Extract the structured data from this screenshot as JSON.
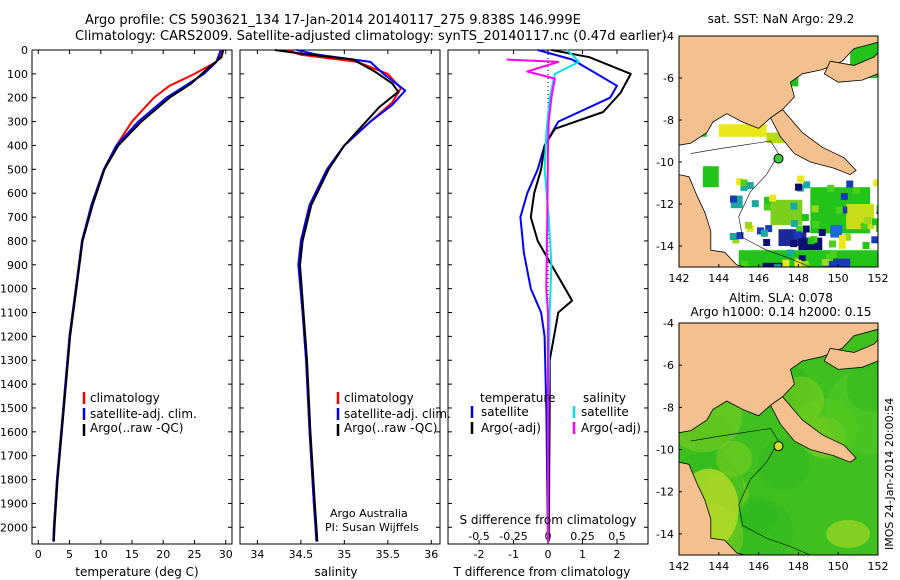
{
  "header": {
    "title_line1": "Argo profile: CS 5903621_134 17-Jan-2014 20140117_275 9.838S 146.999E",
    "title_line2": "Climatology: CARS2009. Satellite-adjusted climatology: synTS_20140117.nc (0.47d earlier)"
  },
  "colors": {
    "climatology": "#ff0000",
    "satellite": "#0000ff",
    "argo": "#000000",
    "sal_satellite": "#00e5ee",
    "sal_argo": "#ff00ff",
    "land": "#f4c08e",
    "sst_green": "#22c41a",
    "sla_green": "#3fc01f"
  },
  "chart_data": [
    {
      "type": "line",
      "name": "temperature-profile",
      "xlabel": "temperature (deg C)",
      "ylabel": "",
      "xlim": [
        -1,
        31
      ],
      "ylim": [
        2070,
        0
      ],
      "xticks": [
        0,
        5,
        10,
        15,
        20,
        25,
        30
      ],
      "yticks": [
        0,
        100,
        200,
        300,
        400,
        500,
        600,
        700,
        800,
        900,
        1000,
        1100,
        1200,
        1300,
        1400,
        1500,
        1600,
        1700,
        1800,
        1900,
        2000
      ],
      "legend": [
        "climatology",
        "satellite-adj. clim.",
        "Argo(..raw -QC)"
      ],
      "series": [
        {
          "name": "climatology",
          "color": "#ff0000",
          "points": [
            [
              29.5,
              0
            ],
            [
              28.5,
              50
            ],
            [
              25,
              100
            ],
            [
              21,
              150
            ],
            [
              18.5,
              200
            ],
            [
              15,
              300
            ],
            [
              12.5,
              400
            ],
            [
              10.5,
              500
            ],
            [
              8.5,
              650
            ],
            [
              7,
              800
            ],
            [
              6,
              1000
            ],
            [
              5,
              1200
            ],
            [
              4,
              1500
            ],
            [
              3,
              1800
            ],
            [
              2.5,
              2000
            ],
            [
              2.4,
              2060
            ]
          ]
        },
        {
          "name": "satellite-adj. clim.",
          "color": "#0000ff",
          "points": [
            [
              29.2,
              0
            ],
            [
              28.5,
              50
            ],
            [
              26.5,
              100
            ],
            [
              23.5,
              150
            ],
            [
              20.5,
              200
            ],
            [
              16,
              300
            ],
            [
              12.5,
              400
            ],
            [
              10.5,
              500
            ],
            [
              8.5,
              650
            ],
            [
              7,
              800
            ],
            [
              6,
              1000
            ],
            [
              5,
              1200
            ],
            [
              4,
              1500
            ],
            [
              3,
              1800
            ],
            [
              2.5,
              2000
            ],
            [
              2.4,
              2060
            ]
          ]
        },
        {
          "name": "Argo(..raw -QC)",
          "color": "#000000",
          "points": [
            [
              29.6,
              0
            ],
            [
              29.3,
              30
            ],
            [
              27,
              80
            ],
            [
              24.5,
              140
            ],
            [
              21,
              200
            ],
            [
              16.5,
              300
            ],
            [
              12.8,
              400
            ],
            [
              10.6,
              500
            ],
            [
              8.7,
              650
            ],
            [
              7.1,
              800
            ],
            [
              6.1,
              1000
            ],
            [
              5.1,
              1200
            ],
            [
              4.1,
              1500
            ],
            [
              3.1,
              1800
            ],
            [
              2.6,
              2000
            ],
            [
              2.5,
              2060
            ]
          ]
        }
      ]
    },
    {
      "type": "line",
      "name": "salinity-profile",
      "xlabel": "salinity",
      "xlim": [
        33.8,
        36.1
      ],
      "ylim": [
        2070,
        0
      ],
      "xticks": [
        34,
        34.5,
        35,
        35.5,
        36
      ],
      "legend": [
        "climatology",
        "satellite-adj. clim.",
        "Argo(..raw -QC)"
      ],
      "annotation": [
        "Argo Australia",
        "PI: Susan Wijffels"
      ],
      "series": [
        {
          "name": "climatology",
          "color": "#ff0000",
          "points": [
            [
              34.35,
              0
            ],
            [
              34.5,
              20
            ],
            [
              35.15,
              50
            ],
            [
              35.5,
              100
            ],
            [
              35.65,
              160
            ],
            [
              35.55,
              220
            ],
            [
              35.3,
              300
            ],
            [
              35.0,
              400
            ],
            [
              34.8,
              500
            ],
            [
              34.6,
              650
            ],
            [
              34.5,
              800
            ],
            [
              34.48,
              900
            ],
            [
              34.52,
              1100
            ],
            [
              34.56,
              1300
            ],
            [
              34.6,
              1600
            ],
            [
              34.65,
              1900
            ],
            [
              34.68,
              2060
            ]
          ]
        },
        {
          "name": "satellite-adj. clim.",
          "color": "#0000ff",
          "points": [
            [
              34.45,
              0
            ],
            [
              34.7,
              20
            ],
            [
              35.3,
              50
            ],
            [
              35.45,
              100
            ],
            [
              35.7,
              170
            ],
            [
              35.55,
              230
            ],
            [
              35.3,
              300
            ],
            [
              35.0,
              400
            ],
            [
              34.8,
              500
            ],
            [
              34.6,
              650
            ],
            [
              34.5,
              800
            ],
            [
              34.47,
              900
            ],
            [
              34.52,
              1100
            ],
            [
              34.56,
              1300
            ],
            [
              34.6,
              1600
            ],
            [
              34.65,
              1900
            ],
            [
              34.68,
              2060
            ]
          ]
        },
        {
          "name": "Argo(..raw -QC)",
          "color": "#000000",
          "points": [
            [
              34.2,
              0
            ],
            [
              34.5,
              15
            ],
            [
              35.1,
              40
            ],
            [
              35.35,
              90
            ],
            [
              35.55,
              140
            ],
            [
              35.62,
              175
            ],
            [
              35.4,
              240
            ],
            [
              35.25,
              300
            ],
            [
              35.0,
              400
            ],
            [
              34.82,
              500
            ],
            [
              34.62,
              650
            ],
            [
              34.52,
              800
            ],
            [
              34.49,
              900
            ],
            [
              34.53,
              1100
            ],
            [
              34.57,
              1300
            ],
            [
              34.61,
              1600
            ],
            [
              34.66,
              1900
            ],
            [
              34.69,
              2060
            ]
          ]
        }
      ]
    },
    {
      "type": "line",
      "name": "difference-profile",
      "xlabel": "T difference from climatology",
      "xlabel_top": "S difference from climatology",
      "xlim": [
        -2.9,
        2.9
      ],
      "ylim": [
        2070,
        0
      ],
      "xticks": [
        -2,
        -1,
        0,
        1,
        2
      ],
      "xticks_s": [
        -0.5,
        -0.25,
        0,
        0.25,
        0.5
      ],
      "legend_titles": [
        "temperature",
        "salinity"
      ],
      "legend": [
        "satellite",
        "Argo(-adj)",
        "satellite",
        "Argo(-adj)"
      ],
      "series": [
        {
          "name": "T satellite",
          "color": "#0000ff",
          "points": [
            [
              -0.3,
              0
            ],
            [
              0.7,
              40
            ],
            [
              1.3,
              90
            ],
            [
              2.0,
              150
            ],
            [
              1.8,
              200
            ],
            [
              0.3,
              300
            ],
            [
              -0.1,
              400
            ],
            [
              -0.3,
              500
            ],
            [
              -0.6,
              600
            ],
            [
              -0.8,
              700
            ],
            [
              -0.7,
              850
            ],
            [
              -0.5,
              1000
            ],
            [
              -0.2,
              1100
            ],
            [
              -0.1,
              1200
            ],
            [
              -0.05,
              1500
            ],
            [
              0,
              2060
            ]
          ]
        },
        {
          "name": "T Argo(-adj)",
          "color": "#000000",
          "points": [
            [
              0.1,
              0
            ],
            [
              1.2,
              30
            ],
            [
              2.4,
              100
            ],
            [
              2.1,
              180
            ],
            [
              1.6,
              260
            ],
            [
              0.2,
              330
            ],
            [
              -0.1,
              400
            ],
            [
              -0.2,
              500
            ],
            [
              -0.4,
              600
            ],
            [
              -0.5,
              700
            ],
            [
              -0.3,
              800
            ],
            [
              0.1,
              900
            ],
            [
              0.5,
              1000
            ],
            [
              0.7,
              1050
            ],
            [
              0.3,
              1100
            ],
            [
              0.05,
              1300
            ],
            [
              0.05,
              1500
            ],
            [
              0.02,
              2060
            ]
          ]
        },
        {
          "name": "S satellite",
          "color": "#00e5ee",
          "points": [
            [
              0.55,
              0
            ],
            [
              0.7,
              20
            ],
            [
              0.9,
              50
            ],
            [
              0.2,
              100
            ],
            [
              0.05,
              200
            ],
            [
              -0.05,
              350
            ],
            [
              -0.1,
              500
            ],
            [
              0.02,
              700
            ],
            [
              0.1,
              900
            ],
            [
              0.05,
              1100
            ],
            [
              0.01,
              1500
            ],
            [
              0,
              2060
            ]
          ]
        },
        {
          "name": "S Argo(-adj)",
          "color": "#ff00ff",
          "points": [
            [
              -1.2,
              40
            ],
            [
              0.3,
              50
            ],
            [
              -0.6,
              90
            ],
            [
              0.2,
              120
            ],
            [
              0.1,
              200
            ],
            [
              0.02,
              300
            ],
            [
              0,
              400
            ],
            [
              -0.02,
              700
            ],
            [
              -0.05,
              1000
            ],
            [
              0,
              1100
            ],
            [
              0,
              2060
            ]
          ]
        }
      ]
    },
    {
      "type": "heatmap",
      "name": "sst-map",
      "title": "sat. SST: NaN Argo: 29.2",
      "xlim": [
        142,
        152
      ],
      "ylim": [
        -15,
        -4
      ],
      "xticks": [
        142,
        144,
        146,
        148,
        150,
        152
      ],
      "yticks": [
        -4,
        -6,
        -8,
        -10,
        -12,
        -14
      ],
      "marker": [
        147.0,
        -9.84
      ]
    },
    {
      "type": "heatmap",
      "name": "sla-map",
      "title_line1": "Altim. SLA: 0.078",
      "title_line2": "Argo h1000: 0.14 h2000: 0.15",
      "xlim": [
        142,
        152
      ],
      "ylim": [
        -15,
        -4
      ],
      "xticks": [
        142,
        144,
        146,
        148,
        150,
        152
      ],
      "yticks": [
        -4,
        -6,
        -8,
        -10,
        -12,
        -14
      ],
      "marker": [
        147.0,
        -9.84
      ]
    }
  ],
  "footer": {
    "side_label": "IMOS 24-Jan-2014 20:00:54"
  }
}
